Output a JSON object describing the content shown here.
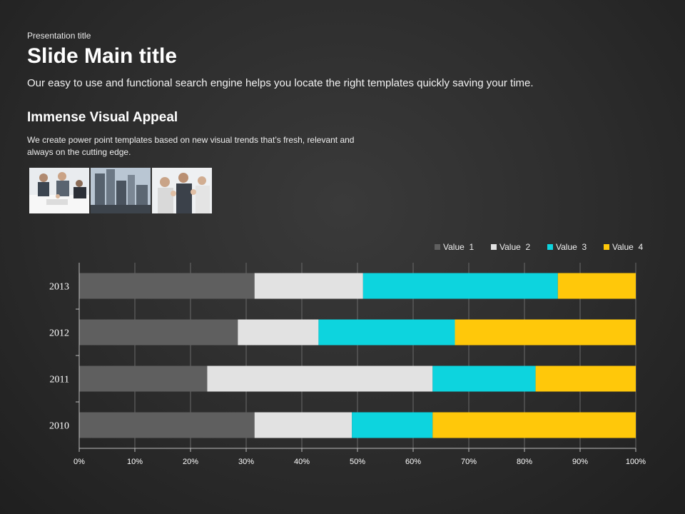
{
  "slide": {
    "presentation_title": "Presentation title",
    "main_title": "Slide Main title",
    "subtitle": "Our easy to use and functional search engine helps you locate the right templates quickly saving your time.",
    "section_heading": "Immense Visual Appeal",
    "section_body": "We create power point templates based on new visual trends that’s fresh, relevant and always on the cutting edge.",
    "photos": [
      {
        "subject": "business-meeting-photo"
      },
      {
        "subject": "city-buildings-photo"
      },
      {
        "subject": "applauding-people-photo"
      }
    ]
  },
  "chart_data": {
    "type": "bar",
    "orientation": "horizontal",
    "stacked": "percent",
    "categories": [
      "2013",
      "2012",
      "2011",
      "2010"
    ],
    "series": [
      {
        "name": "Value  1",
        "color": "#5f5f5f",
        "values": [
          31.5,
          28.5,
          23,
          31.5
        ]
      },
      {
        "name": "Value  2",
        "color": "#e2e2e2",
        "values": [
          19.5,
          14.5,
          40.5,
          17.5
        ]
      },
      {
        "name": "Value  3",
        "color": "#0dd4de",
        "values": [
          35,
          24.5,
          18.5,
          14.5
        ]
      },
      {
        "name": "Value  4",
        "color": "#ffc80a",
        "values": [
          14,
          32.5,
          18,
          36.5
        ]
      }
    ],
    "x_ticks": [
      "0%",
      "10%",
      "20%",
      "30%",
      "40%",
      "50%",
      "60%",
      "70%",
      "80%",
      "90%",
      "100%"
    ],
    "xlim": [
      0,
      100
    ],
    "grid": true,
    "legend_position": "top-right"
  }
}
